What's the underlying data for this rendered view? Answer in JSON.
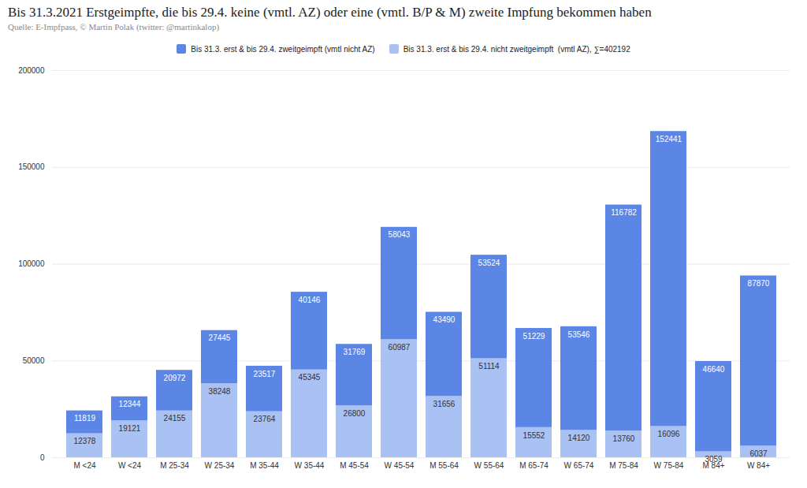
{
  "chart_data": {
    "type": "bar",
    "title": "Bis 31.3.2021 Erstgeimpfte, die bis 29.4. keine (vmtl. AZ) oder eine (vmtl. B/P & M) zweite Impfung bekommen haben",
    "subtitle": "Quelle: E-Impfpass, © Martin Polak (twitter: @martinkalop)",
    "categories": [
      "M <24",
      "W <24",
      "M 25-34",
      "W 25-34",
      "M 35-44",
      "W 35-44",
      "M 45-54",
      "W 45-54",
      "M 55-64",
      "W 55-64",
      "M 65-74",
      "W 65-74",
      "M 75-84",
      "W 75-84",
      "M 84+",
      "W 84+"
    ],
    "series": [
      {
        "name": "Bis 31.3. erst & bis 29.4. zweitgeimpft (vmtl nicht AZ)",
        "color": "#5b86e5",
        "values": [
          11819,
          12344,
          20972,
          27445,
          23517,
          40146,
          31769,
          58043,
          43490,
          53524,
          51229,
          53546,
          116782,
          152441,
          46640,
          87870
        ]
      },
      {
        "name": "Bis 31.3. erst & bis 29.4. nicht zweitgeimpft  (vmtl AZ), ∑=402192",
        "color": "#a9c1f3",
        "values": [
          12378,
          19121,
          24155,
          38248,
          23764,
          45345,
          26800,
          60987,
          31656,
          51114,
          15552,
          14120,
          13760,
          16096,
          3059,
          6037
        ]
      }
    ],
    "stacked": true,
    "data_labels": true,
    "ylim": [
      0,
      200000
    ],
    "yticks": [
      0,
      50000,
      100000,
      150000,
      200000
    ],
    "grid": true,
    "legend": "top"
  }
}
